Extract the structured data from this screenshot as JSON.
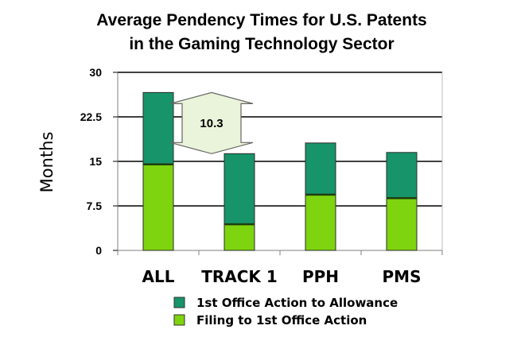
{
  "chart_data": {
    "type": "bar",
    "stacked": true,
    "title": "Average Pendency Times for U.S. Patents",
    "subtitle": "in the Gaming Technology Sector",
    "ylabel": "Months",
    "xlabel": "",
    "ylim": [
      0,
      30
    ],
    "yticks": [
      0,
      7.5,
      15,
      22.5,
      30
    ],
    "ytick_labels": [
      "0",
      "7.5",
      "15",
      "22.5",
      "30"
    ],
    "grid": true,
    "categories": [
      "ALL",
      "TRACK 1",
      "PPH",
      "PMS"
    ],
    "series": [
      {
        "name": "Filing to 1st Office Action",
        "color": "#7ED40E",
        "values": [
          14.5,
          4.4,
          9.4,
          8.8
        ]
      },
      {
        "name": "1st Office Action to Allowance",
        "color": "#17946A",
        "values": [
          12.1,
          11.9,
          8.7,
          7.7
        ]
      }
    ],
    "legend": {
      "placement": "bottom",
      "entries": [
        "1st Office Action to Allowance",
        "Filing to 1st Office Action"
      ]
    },
    "annotation": {
      "type": "double-arrow",
      "label": "10.3",
      "from_value": 26.6,
      "to_value": 16.3,
      "between": [
        "ALL",
        "TRACK 1"
      ],
      "fill": "#E9F4DA",
      "stroke": "#666666"
    }
  }
}
